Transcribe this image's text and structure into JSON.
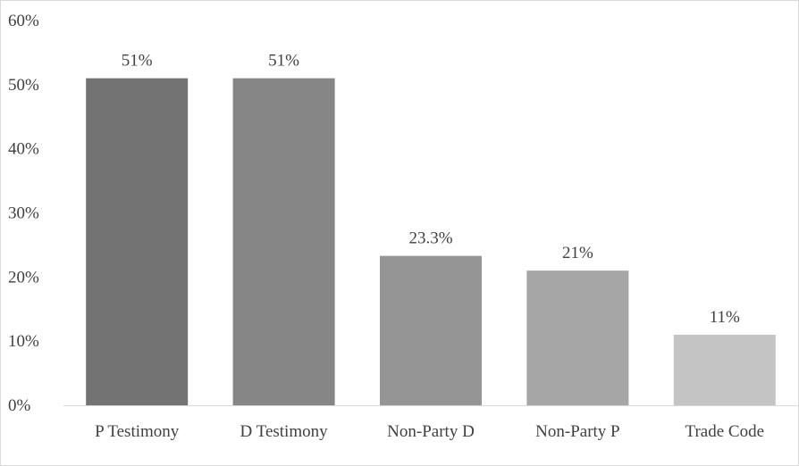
{
  "chart_data": {
    "type": "bar",
    "title": "",
    "xlabel": "",
    "ylabel": "",
    "categories": [
      "P Testimony",
      "D Testimony",
      "Non-Party D",
      "Non-Party P",
      "Trade Code"
    ],
    "values": [
      51,
      51,
      23.3,
      21,
      11
    ],
    "data_labels": [
      "51%",
      "51%",
      "23.3%",
      "21%",
      "11%"
    ],
    "bar_colors": [
      "#737373",
      "#868686",
      "#959595",
      "#a6a6a6",
      "#c4c4c4"
    ],
    "ylim": [
      0,
      60
    ],
    "y_ticks": [
      0,
      10,
      20,
      30,
      40,
      50,
      60
    ],
    "y_tick_labels": [
      "0%",
      "10%",
      "20%",
      "30%",
      "40%",
      "50%",
      "60%"
    ],
    "axis_color": "#d9d9d9",
    "grid": false,
    "legend": "none"
  }
}
